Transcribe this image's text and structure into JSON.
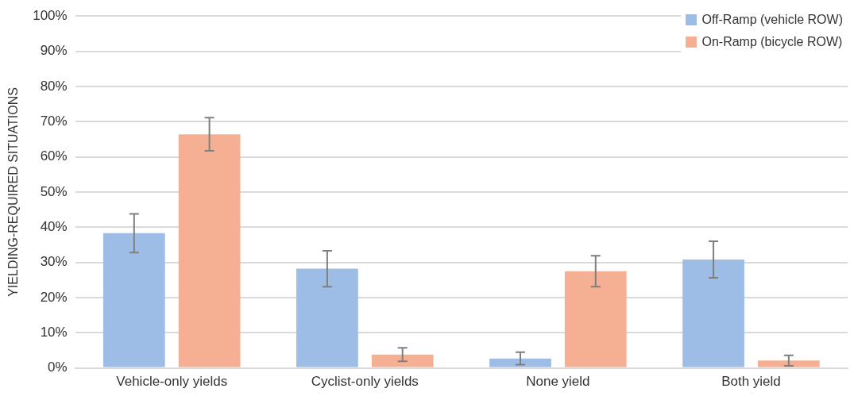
{
  "chart_data": {
    "type": "bar",
    "ylabel": "YIELDING-REQUIRED SITUATIONS",
    "categories": [
      "Vehicle-only yields",
      "Cyclist-only yields",
      "None yield",
      "Both yield"
    ],
    "series": [
      {
        "name": "Off-Ramp (vehicle ROW)",
        "color": "#9dbde6",
        "values": [
          38.3,
          28.2,
          2.7,
          30.8
        ],
        "errors": [
          5.5,
          5.1,
          1.8,
          5.2
        ]
      },
      {
        "name": "On-Ramp (bicycle ROW)",
        "color": "#f5b093",
        "values": [
          66.4,
          3.8,
          27.5,
          2.1
        ],
        "errors": [
          4.7,
          1.9,
          4.4,
          1.5
        ]
      }
    ],
    "ylim": [
      0,
      100
    ],
    "yticks": [
      {
        "value": 0,
        "label": "0%"
      },
      {
        "value": 10,
        "label": "10%"
      },
      {
        "value": 20,
        "label": "20%"
      },
      {
        "value": 30,
        "label": "30%"
      },
      {
        "value": 40,
        "label": "40%"
      },
      {
        "value": 50,
        "label": "50%"
      },
      {
        "value": 60,
        "label": "60%"
      },
      {
        "value": 70,
        "label": "70%"
      },
      {
        "value": 80,
        "label": "80%"
      },
      {
        "value": 90,
        "label": "90%"
      },
      {
        "value": 100,
        "label": "100%"
      }
    ],
    "grid": "y",
    "legend": "top right"
  }
}
